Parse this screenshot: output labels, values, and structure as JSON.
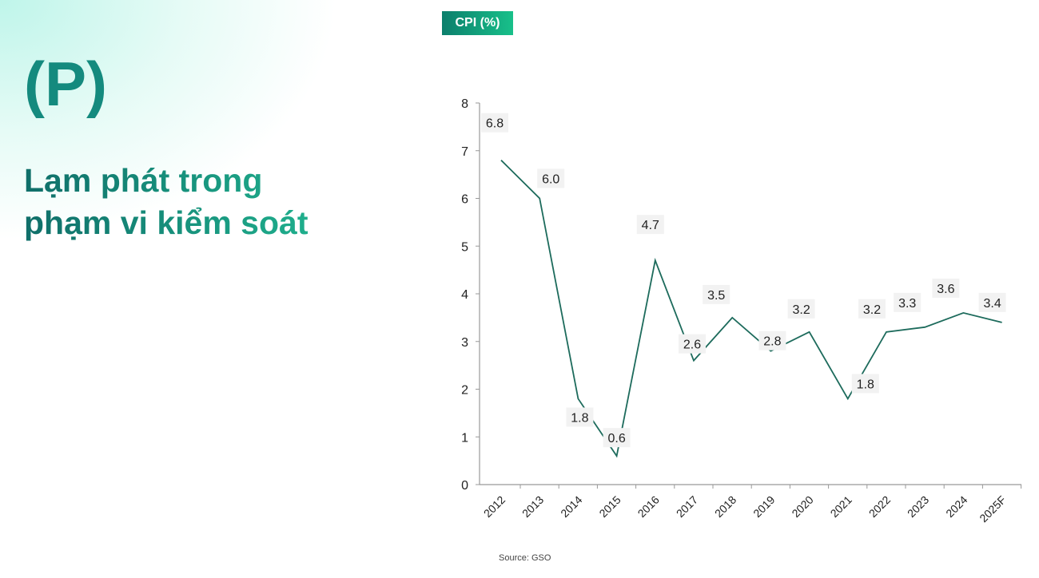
{
  "heading": {
    "marker": "(P)",
    "title_line1": "Lạm phát trong",
    "title_line2": "phạm vi kiểm soát"
  },
  "source": "Source: GSO",
  "colors": {
    "line": "#1d6b5c",
    "accent": "#148a7e",
    "label_bg": "#f2f2f2"
  },
  "chart_data": {
    "type": "line",
    "title": "CPI (%)",
    "categories": [
      "2012",
      "2013",
      "2014",
      "2015",
      "2016",
      "2017",
      "2018",
      "2019",
      "2020",
      "2021",
      "2022",
      "2023",
      "2024",
      "2025F"
    ],
    "values": [
      6.8,
      6.0,
      1.8,
      0.6,
      4.7,
      2.6,
      3.5,
      2.8,
      3.2,
      1.8,
      3.2,
      3.3,
      3.6,
      3.4
    ],
    "data_labels": [
      "6.8",
      "6.0",
      "1.8",
      "0.6",
      "4.7",
      "2.6",
      "3.5",
      "2.8",
      "3.2",
      "1.8",
      "3.2",
      "3.3",
      "3.6",
      "3.4"
    ],
    "ylim": [
      0,
      8
    ],
    "yticks": [
      "0",
      "1",
      "2",
      "3",
      "4",
      "5",
      "6",
      "7",
      "8"
    ],
    "grid": false,
    "legend": "none"
  }
}
